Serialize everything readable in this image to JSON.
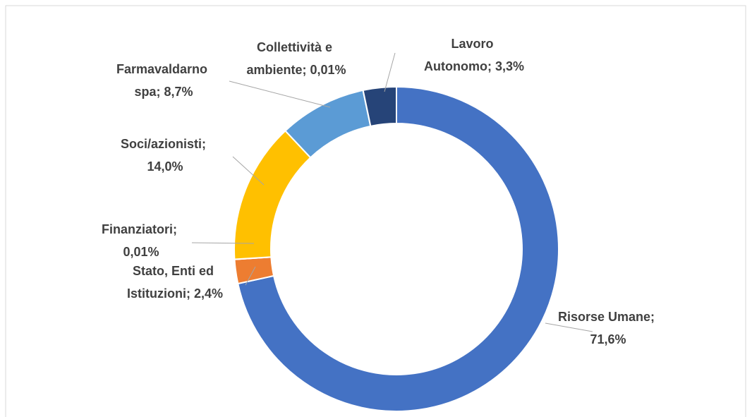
{
  "chart_data": {
    "type": "pie",
    "value_labels": [
      "Risorse Umane; 71,6%",
      "Stato, Enti ed Istituzioni; 2,4%",
      "Finanziatori; 0,01%",
      "Soci/azionisti; 14,0%",
      "Farmavaldarno spa; 8,7%",
      "Collettività e ambiente; 0,01%",
      "Lavoro Autonomo; 3,3%"
    ],
    "values": [
      71.6,
      2.4,
      0.01,
      14.0,
      8.7,
      0.01,
      3.3
    ],
    "colors": [
      "#4472c4",
      "#ed7d31",
      "#a5a5a5",
      "#ffc000",
      "#5b9bd5",
      "#70ad47",
      "#264478"
    ]
  }
}
